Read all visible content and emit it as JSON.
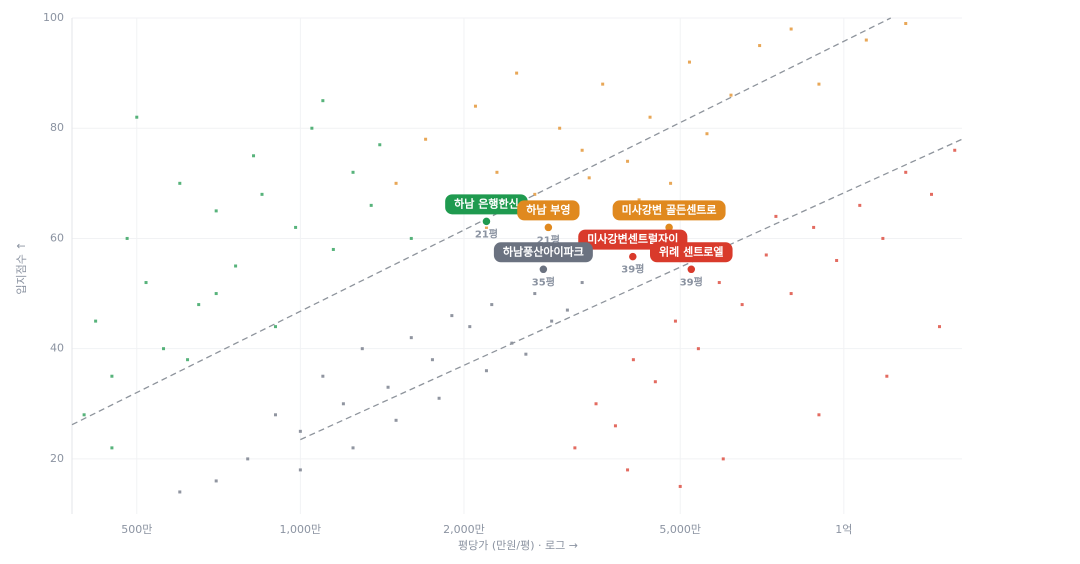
{
  "chart_data": {
    "type": "scatter",
    "x_label": "평당가 (만원/평) · 로그 →",
    "y_label": "입지점수 ↑",
    "xlog": true,
    "grid": true,
    "xlim": [
      380,
      16500
    ],
    "ylim": [
      10,
      100
    ],
    "xticks": [
      {
        "value": 500,
        "label": "500만"
      },
      {
        "value": 1000,
        "label": "1,000만"
      },
      {
        "value": 2000,
        "label": "2,000만"
      },
      {
        "value": 5000,
        "label": "5,000만"
      },
      {
        "value": 10000,
        "label": "1억"
      }
    ],
    "yticks": [
      20,
      40,
      60,
      80,
      100
    ],
    "series": [
      {
        "color": "#1f9a4f",
        "x": [
          400,
          420,
          450,
          480,
          520,
          560,
          600,
          650,
          700,
          760,
          820,
          900,
          980,
          1050,
          1150,
          1250,
          1350,
          450,
          500,
          620,
          700,
          850,
          1100,
          1400,
          1600
        ],
        "values": [
          28,
          45,
          35,
          60,
          52,
          40,
          70,
          48,
          65,
          55,
          75,
          44,
          62,
          80,
          58,
          72,
          66,
          22,
          82,
          38,
          50,
          68,
          85,
          77,
          60
        ]
      },
      {
        "color": "#e0891f",
        "x": [
          1500,
          1700,
          1900,
          2100,
          2300,
          2500,
          2700,
          3000,
          3300,
          3600,
          4000,
          4400,
          4800,
          5200,
          5600,
          6200,
          7000,
          8000,
          2200,
          2600,
          3400,
          4200,
          9000,
          11000,
          13000
        ],
        "values": [
          70,
          78,
          66,
          84,
          72,
          90,
          68,
          80,
          76,
          88,
          74,
          82,
          70,
          92,
          79,
          86,
          95,
          98,
          62,
          64,
          71,
          67,
          88,
          96,
          99
        ]
      },
      {
        "color": "#6b7280",
        "x": [
          800,
          900,
          1000,
          1100,
          1200,
          1300,
          1450,
          1600,
          1750,
          1900,
          2050,
          2250,
          2450,
          2700,
          2900,
          3100,
          1000,
          1250,
          1500,
          1800,
          2200,
          2600,
          700,
          600,
          3300
        ],
        "values": [
          20,
          28,
          25,
          35,
          30,
          40,
          33,
          42,
          38,
          46,
          44,
          48,
          41,
          50,
          45,
          47,
          18,
          22,
          27,
          31,
          36,
          39,
          16,
          14,
          52
        ]
      },
      {
        "color": "#d93a2b",
        "x": [
          3200,
          3500,
          3800,
          4100,
          4500,
          4900,
          5400,
          5900,
          6500,
          7200,
          8000,
          8800,
          9700,
          10700,
          11800,
          13000,
          14500,
          16000,
          4000,
          6000,
          9000,
          12000,
          15000,
          5000,
          7500
        ],
        "values": [
          22,
          30,
          26,
          38,
          34,
          45,
          40,
          52,
          48,
          57,
          50,
          62,
          56,
          66,
          60,
          72,
          68,
          76,
          18,
          20,
          28,
          35,
          44,
          15,
          64
        ]
      }
    ],
    "reference_lines": [
      {
        "x": [
          380,
          12200
        ],
        "values": [
          26.2,
          100
        ]
      },
      {
        "x": [
          1000,
          16500
        ],
        "values": [
          23.5,
          78
        ]
      }
    ],
    "highlights": [
      {
        "name": "하남 은행한신",
        "size": "21평",
        "color": "#1f9a4f",
        "x": 2200,
        "value": 63.1
      },
      {
        "name": "하남 부영",
        "size": "21평",
        "color": "#e0891f",
        "x": 2860,
        "value": 62
      },
      {
        "name": "미사강변 골든센트로",
        "color": "#e0891f",
        "x": 4770,
        "value": 62
      },
      {
        "name": "미사강변센트럴자이",
        "size": "39평",
        "color": "#d93a2b",
        "x": 4090,
        "value": 56.7
      },
      {
        "name": "하남풍산아이파크",
        "size": "35평",
        "color": "#6b7280",
        "x": 2800,
        "value": 54.4
      },
      {
        "name": "위례 센트로엘",
        "size": "39평",
        "color": "#d93a2b",
        "x": 5240,
        "value": 54.4
      }
    ]
  }
}
